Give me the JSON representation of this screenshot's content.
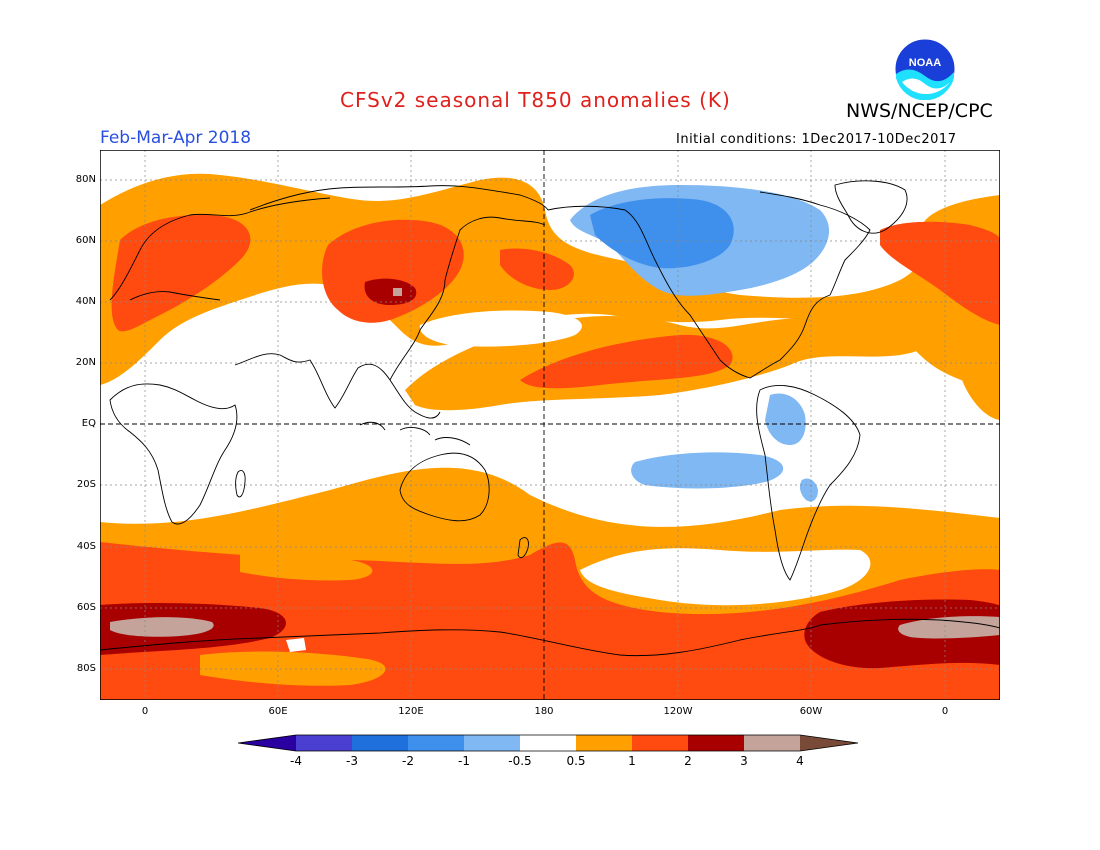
{
  "title": "CFSv2 seasonal T850 anomalies (K)",
  "agency": "NWS/NCEP/CPC",
  "logo_text": "NOAA",
  "period": "Feb-Mar-Apr 2018",
  "initial_conditions": "Initial conditions: 1Dec2017-10Dec2017",
  "lat_labels": [
    "80N",
    "60N",
    "40N",
    "20N",
    "EQ",
    "20S",
    "40S",
    "60S",
    "80S"
  ],
  "lon_labels": [
    "0",
    "60E",
    "120E",
    "180",
    "120W",
    "60W",
    "0"
  ],
  "colorbar": {
    "levels": [
      "-4",
      "-3",
      "-2",
      "-1",
      "-0.5",
      "0.5",
      "1",
      "2",
      "3",
      "4"
    ],
    "colors": [
      "#2b00a0",
      "#4a3fd0",
      "#1f6fdc",
      "#3f90ec",
      "#7fb8f2",
      "#ffffff",
      "#ffa000",
      "#ff4a10",
      "#a80000",
      "#c4a39a",
      "#7a4a38"
    ]
  }
}
